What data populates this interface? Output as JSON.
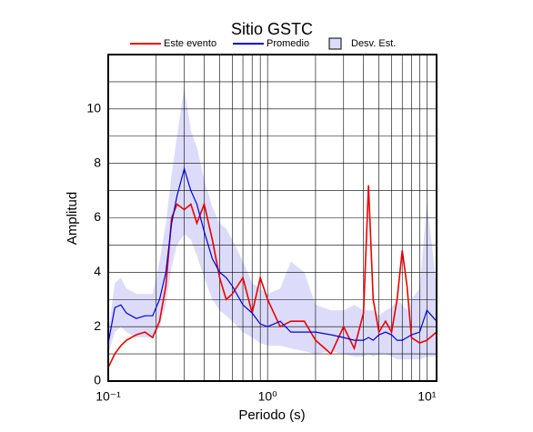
{
  "chart_data": {
    "type": "line",
    "title": "Sitio GSTC",
    "xlabel": "Periodo (s)",
    "ylabel": "Amplitud",
    "xscale": "log",
    "xlim": [
      0.1,
      11.5
    ],
    "ylim": [
      0,
      12
    ],
    "xticks": [
      {
        "value": 0.1,
        "label": "10⁻¹"
      },
      {
        "value": 1,
        "label": "10⁰"
      },
      {
        "value": 10,
        "label": "10¹"
      }
    ],
    "x_minor_ticks": [
      0.2,
      0.3,
      0.4,
      0.5,
      0.6,
      0.7,
      0.8,
      0.9,
      2,
      3,
      4,
      5,
      6,
      7,
      8,
      9
    ],
    "yticks": [
      0,
      2,
      4,
      6,
      8,
      10
    ],
    "y_minor_ticks": [
      1,
      3,
      5,
      7,
      9,
      11
    ],
    "grid": true,
    "legend": "top",
    "x": [
      0.1,
      0.11,
      0.12,
      0.13,
      0.15,
      0.17,
      0.19,
      0.21,
      0.23,
      0.25,
      0.27,
      0.3,
      0.33,
      0.36,
      0.4,
      0.45,
      0.5,
      0.55,
      0.6,
      0.7,
      0.8,
      0.9,
      1.0,
      1.2,
      1.4,
      1.7,
      2.0,
      2.5,
      3.0,
      3.5,
      4.0,
      4.3,
      4.6,
      5.0,
      5.5,
      6.0,
      6.5,
      7.0,
      7.5,
      8,
      9,
      10,
      11.5
    ],
    "series": [
      {
        "name": "Este evento",
        "color": "#ee0000",
        "values": [
          0.5,
          1.0,
          1.3,
          1.5,
          1.7,
          1.8,
          1.6,
          2.2,
          3.5,
          6.0,
          6.5,
          6.3,
          6.5,
          5.8,
          6.5,
          5.2,
          3.8,
          3.0,
          3.2,
          3.8,
          2.5,
          3.8,
          3.0,
          2.0,
          2.2,
          2.2,
          1.5,
          1.0,
          2.0,
          1.2,
          2.5,
          7.2,
          3.0,
          1.8,
          2.2,
          1.8,
          3.0,
          4.8,
          3.5,
          1.6,
          1.4,
          1.5,
          1.8
        ]
      },
      {
        "name": "Promedio",
        "color": "#0000dd",
        "values": [
          1.4,
          2.7,
          2.8,
          2.5,
          2.3,
          2.4,
          2.4,
          3.0,
          4.0,
          5.8,
          6.8,
          7.8,
          7.0,
          6.5,
          5.5,
          4.5,
          4.0,
          3.8,
          3.5,
          2.8,
          2.5,
          2.1,
          2.0,
          2.2,
          1.8,
          1.8,
          1.8,
          1.7,
          1.6,
          1.5,
          1.5,
          1.6,
          1.5,
          1.7,
          1.8,
          1.7,
          1.5,
          1.5,
          1.6,
          1.7,
          1.8,
          2.6,
          2.2
        ]
      },
      {
        "name": "Desv. Est.",
        "color": "#dcdcfa",
        "band": true,
        "lower": [
          1.0,
          1.8,
          2.0,
          1.8,
          1.6,
          1.6,
          1.6,
          2.0,
          2.8,
          4.2,
          5.0,
          5.4,
          5.2,
          4.6,
          3.8,
          3.0,
          2.6,
          2.4,
          2.2,
          1.8,
          1.6,
          1.4,
          1.3,
          1.3,
          1.2,
          1.1,
          1.0,
          1.1,
          1.0,
          0.9,
          0.9,
          1.0,
          0.9,
          1.0,
          1.0,
          0.9,
          0.8,
          0.8,
          0.8,
          0.8,
          0.8,
          0.9,
          0.9
        ],
        "upper": [
          1.8,
          3.6,
          3.8,
          3.4,
          3.2,
          3.2,
          3.2,
          4.4,
          5.8,
          7.6,
          9.0,
          10.8,
          9.2,
          8.6,
          7.4,
          6.4,
          5.8,
          5.6,
          5.2,
          4.4,
          3.6,
          3.4,
          3.2,
          3.4,
          4.4,
          4.0,
          2.8,
          2.6,
          2.6,
          2.8,
          2.6,
          2.6,
          2.6,
          2.4,
          2.6,
          2.7,
          3.0,
          2.8,
          2.6,
          3.0,
          3.4,
          6.6,
          3.5
        ]
      }
    ]
  }
}
